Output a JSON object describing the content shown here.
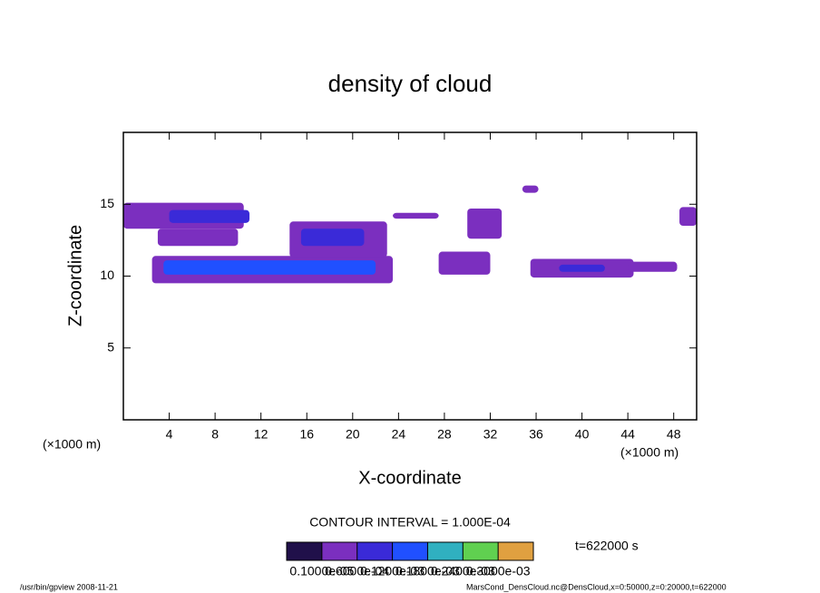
{
  "chart_data": {
    "type": "region-fill",
    "title": "density of cloud",
    "x_label": "X-coordinate",
    "y_label": "Z-coordinate",
    "x_unit_left": "(×1000 m)",
    "x_unit_right": "(×1000 m)",
    "xlim": [
      0,
      50
    ],
    "ylim": [
      0,
      20
    ],
    "xticks": [
      4,
      8,
      12,
      16,
      20,
      24,
      28,
      32,
      36,
      40,
      44,
      48
    ],
    "yticks": [
      5,
      10,
      15
    ],
    "contour_interval": "CONTOUR INTERVAL = 1.000E-04",
    "time": "t=622000 s",
    "colorbar": {
      "colors": [
        "#20104a",
        "#7b2fbf",
        "#3a2ad8",
        "#2050ff",
        "#30b0c0",
        "#60d050",
        "#e0a040"
      ],
      "levels": [
        {
          "value": 1e-06,
          "label": "0.1000e-05"
        },
        {
          "value": 6e-05,
          "label": "0.6000e-04"
        },
        {
          "value": 0.00012,
          "label": "0.1200e-03"
        },
        {
          "value": 0.00018,
          "label": "0.1800e-03"
        },
        {
          "value": 0.00024,
          "label": "0.2400e-03"
        },
        {
          "value": 0.0003,
          "label": "0.3000e-03"
        }
      ]
    },
    "regions": [
      {
        "x": [
          0,
          10.5
        ],
        "z": [
          13.3,
          15.1
        ],
        "value": 4e-05
      },
      {
        "x": [
          3,
          10
        ],
        "z": [
          12.1,
          13.3
        ],
        "value": 4e-05
      },
      {
        "x": [
          4,
          11
        ],
        "z": [
          13.7,
          14.6
        ],
        "value": 7e-05
      },
      {
        "x": [
          2.5,
          23.5
        ],
        "z": [
          9.5,
          11.4
        ],
        "value": 4e-05
      },
      {
        "x": [
          3.5,
          22
        ],
        "z": [
          10.1,
          11.1
        ],
        "value": 0.00013
      },
      {
        "x": [
          14.5,
          23
        ],
        "z": [
          11.3,
          13.8
        ],
        "value": 4e-05
      },
      {
        "x": [
          15.5,
          21
        ],
        "z": [
          12.1,
          13.3
        ],
        "value": 7e-05
      },
      {
        "x": [
          23.5,
          27.5
        ],
        "z": [
          14,
          14.4
        ],
        "value": 4e-05
      },
      {
        "x": [
          27.5,
          32
        ],
        "z": [
          10.1,
          11.7
        ],
        "value": 4e-05
      },
      {
        "x": [
          30,
          33
        ],
        "z": [
          12.6,
          14.7
        ],
        "value": 4e-05
      },
      {
        "x": [
          34.8,
          36.2
        ],
        "z": [
          15.8,
          16.3
        ],
        "value": 4e-05
      },
      {
        "x": [
          35.5,
          44.5
        ],
        "z": [
          9.9,
          11.2
        ],
        "value": 4e-05
      },
      {
        "x": [
          38,
          42
        ],
        "z": [
          10.3,
          10.8
        ],
        "value": 7e-05
      },
      {
        "x": [
          44,
          48.3
        ],
        "z": [
          10.3,
          11
        ],
        "value": 4e-05
      },
      {
        "x": [
          48.5,
          50
        ],
        "z": [
          13.5,
          14.8
        ],
        "value": 4e-05
      }
    ]
  },
  "footer": {
    "left": "/usr/bin/gpview  2008-11-21",
    "right": "MarsCond_DensCloud.nc@DensCloud,x=0:50000,z=0:20000,t=622000"
  }
}
